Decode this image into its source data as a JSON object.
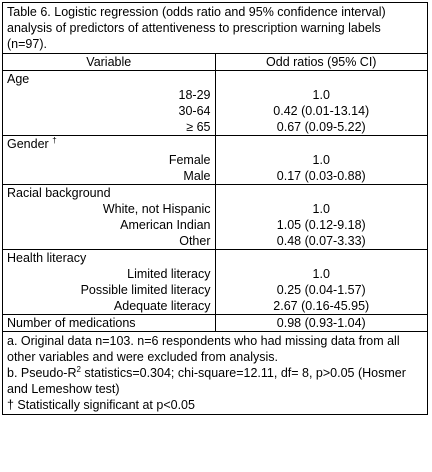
{
  "caption": "Table 6. Logistic regression (odds ratio and 95% confidence interval) analysis of predictors of attentiveness to prescription warning labels (n=97).",
  "table": {
    "header": [
      "Variable",
      "Odd ratios (95% CI)"
    ],
    "sections": [
      {
        "label": "Age",
        "rows": [
          [
            "18-29",
            "1.0"
          ],
          [
            "30-64",
            "0.42 (0.01-13.14)"
          ],
          [
            "≥ 65",
            "0.67 (0.09-5.22)"
          ]
        ]
      },
      {
        "label": "Gender",
        "mark": "†",
        "rows": [
          [
            "Female",
            "1.0"
          ],
          [
            "Male",
            "0.17 (0.03-0.88)"
          ]
        ]
      },
      {
        "label": "Racial background",
        "rows": [
          [
            "White, not Hispanic",
            "1.0"
          ],
          [
            "American Indian",
            "1.05 (0.12-9.18)"
          ],
          [
            "Other",
            "0.48 (0.07-3.33)"
          ]
        ]
      },
      {
        "label": "Health literacy",
        "rows": [
          [
            "Limited literacy",
            "1.0"
          ],
          [
            "Possible limited literacy",
            "0.25 (0.04-1.57)"
          ],
          [
            "Adequate literacy",
            "2.67 (0.16-45.95)"
          ]
        ]
      }
    ],
    "total": [
      "Number of medications",
      "0.98 (0.93-1.04)"
    ]
  },
  "notes": {
    "a": "a. Original data n=103. n=6 respondents who had missing data from all other variables and were excluded from analysis.",
    "b_pre": "b. Pseudo-R",
    "b_sup": "2",
    "b_post": " statistics=0.304; chi-square=12.11, df= 8, p>0.05 (Hosmer and Lemeshow test)",
    "c": "† Statistically significant at p<0.05"
  }
}
